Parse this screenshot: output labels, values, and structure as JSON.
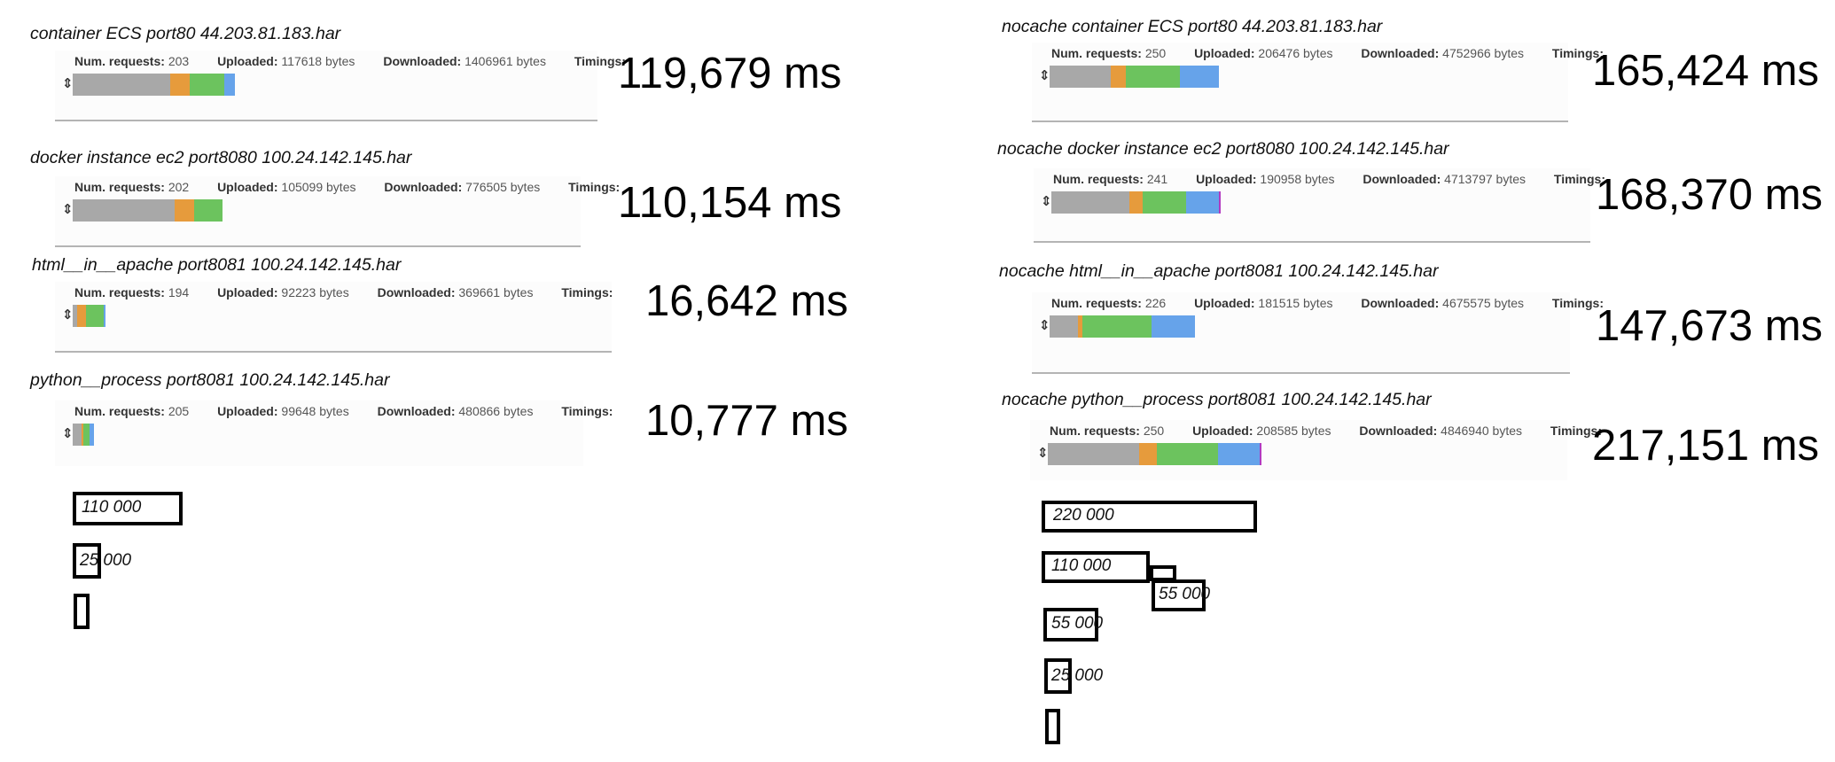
{
  "colors": {
    "seg1": "#a8a8a8",
    "seg2": "#e69b3c",
    "seg3": "#6cc35e",
    "seg4": "#66a3ea",
    "seg5": "#b23ac0"
  },
  "labels": {
    "requests": "Num. requests:",
    "uploaded": "Uploaded:",
    "downloaded": "Downloaded:",
    "timings": "Timings:"
  },
  "handle_glyph": "⇕",
  "left": {
    "entries": [
      {
        "title": "container ECS port80 44.203.81.183.har",
        "requests": "203",
        "uploaded": "117618 bytes",
        "downloaded": "1406961 bytes",
        "total": "119,679 ms",
        "segments": [
          0.45,
          0.09,
          0.16,
          0.05
        ]
      },
      {
        "title": "docker instance ec2 port8080 100.24.142.145.har",
        "requests": "202",
        "uploaded": "105099 bytes",
        "downloaded": "776505 bytes",
        "total": "110,154 ms",
        "segments": [
          0.47,
          0.09,
          0.13
        ]
      },
      {
        "title": "html__in__apache port8081 100.24.142.145.har",
        "requests": "194",
        "uploaded": "92223 bytes",
        "downloaded": "369661 bytes",
        "total": "16,642 ms",
        "segments": [
          0.02,
          0.04,
          0.08,
          0.01
        ]
      },
      {
        "title": "python__process port8081 100.24.142.145.har",
        "requests": "205",
        "uploaded": "99648 bytes",
        "downloaded": "480866 bytes",
        "total": "10,777 ms",
        "segments": [
          0.04,
          0.01,
          0.03,
          0.02
        ]
      }
    ],
    "scale": [
      {
        "label": "110 000"
      },
      {
        "label": "25 000"
      },
      {
        "label": ""
      }
    ]
  },
  "right": {
    "entries": [
      {
        "title": "nocache container ECS port80 44.203.81.183.har",
        "requests": "250",
        "uploaded": "206476 bytes",
        "downloaded": "4752966 bytes",
        "total": "165,424 ms",
        "segments": [
          0.28,
          0.07,
          0.25,
          0.18
        ]
      },
      {
        "title": "nocache docker instance ec2 port8080 100.24.142.145.har",
        "requests": "241",
        "uploaded": "190958 bytes",
        "downloaded": "4713797 bytes",
        "total": "168,370 ms",
        "segments": [
          0.36,
          0.06,
          0.2,
          0.15,
          0.01
        ]
      },
      {
        "title": "nocache html__in__apache port8081 100.24.142.145.har",
        "requests": "226",
        "uploaded": "181515 bytes",
        "downloaded": "4675575 bytes",
        "total": "147,673 ms",
        "segments": [
          0.13,
          0.02,
          0.32,
          0.2
        ]
      },
      {
        "title": "nocache python__process port8081 100.24.142.145.har",
        "requests": "250",
        "uploaded": "208585 bytes",
        "downloaded": "4846940 bytes",
        "total": "217,151 ms",
        "segments": [
          0.42,
          0.08,
          0.28,
          0.19,
          0.01
        ]
      }
    ],
    "scale": [
      {
        "label": "220 000"
      },
      {
        "label": "110 000"
      },
      {
        "label": "55 000"
      },
      {
        "label": "55 000"
      },
      {
        "label": "25 000"
      },
      {
        "label": ""
      }
    ]
  }
}
